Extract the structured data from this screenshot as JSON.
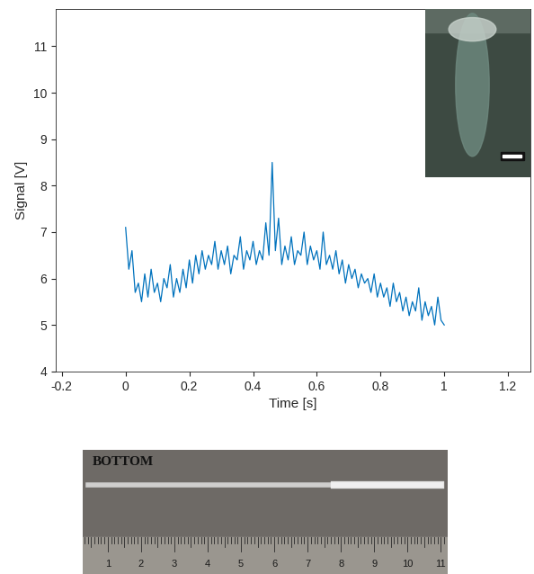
{
  "chart_data": {
    "type": "line",
    "xlabel": "Time [s]",
    "ylabel": "Signal [V]",
    "x": [
      0,
      0.01,
      0.02,
      0.03,
      0.04,
      0.05,
      0.06,
      0.07,
      0.08,
      0.09,
      0.1,
      0.11,
      0.12,
      0.13,
      0.14,
      0.15,
      0.16,
      0.17,
      0.18,
      0.19,
      0.2,
      0.21,
      0.22,
      0.23,
      0.24,
      0.25,
      0.26,
      0.27,
      0.28,
      0.29,
      0.3,
      0.31,
      0.32,
      0.33,
      0.34,
      0.35,
      0.36,
      0.37,
      0.38,
      0.39,
      0.4,
      0.41,
      0.42,
      0.43,
      0.44,
      0.45,
      0.46,
      0.47,
      0.48,
      0.49,
      0.5,
      0.51,
      0.52,
      0.53,
      0.54,
      0.55,
      0.56,
      0.57,
      0.58,
      0.59,
      0.6,
      0.61,
      0.62,
      0.63,
      0.64,
      0.65,
      0.66,
      0.67,
      0.68,
      0.69,
      0.7,
      0.71,
      0.72,
      0.73,
      0.74,
      0.75,
      0.76,
      0.77,
      0.78,
      0.79,
      0.8,
      0.81,
      0.82,
      0.83,
      0.84,
      0.85,
      0.86,
      0.87,
      0.88,
      0.89,
      0.9,
      0.91,
      0.92,
      0.93,
      0.94,
      0.95,
      0.96,
      0.97,
      0.98,
      0.99,
      1
    ],
    "values": [
      7.1,
      6.2,
      6.6,
      5.7,
      5.9,
      5.5,
      6.1,
      5.6,
      6.2,
      5.7,
      5.9,
      5.5,
      6.0,
      5.8,
      6.3,
      5.6,
      6.0,
      5.7,
      6.2,
      5.8,
      6.4,
      5.9,
      6.5,
      6.1,
      6.6,
      6.2,
      6.5,
      6.3,
      6.8,
      6.2,
      6.6,
      6.3,
      6.7,
      6.1,
      6.5,
      6.4,
      6.9,
      6.2,
      6.6,
      6.4,
      6.8,
      6.3,
      6.6,
      6.4,
      7.2,
      6.5,
      8.5,
      6.6,
      7.3,
      6.3,
      6.7,
      6.4,
      6.9,
      6.3,
      6.6,
      6.5,
      7.0,
      6.3,
      6.7,
      6.4,
      6.6,
      6.2,
      7.0,
      6.3,
      6.5,
      6.2,
      6.6,
      6.1,
      6.4,
      5.9,
      6.3,
      6.0,
      6.2,
      5.8,
      6.1,
      5.9,
      6.0,
      5.7,
      6.1,
      5.6,
      5.9,
      5.6,
      5.8,
      5.4,
      5.9,
      5.5,
      5.7,
      5.3,
      5.6,
      5.2,
      5.5,
      5.3,
      5.8,
      5.1,
      5.5,
      5.2,
      5.4,
      5.0,
      5.6,
      5.1,
      5.0
    ],
    "color": "#0072bd",
    "xlim": [
      -0.22,
      1.27
    ],
    "xticks": [
      -0.2,
      0,
      0.2,
      0.4,
      0.6,
      0.8,
      1,
      1.2
    ],
    "ylim": [
      4,
      11.8
    ],
    "yticks": [
      4,
      5,
      6,
      7,
      8,
      9,
      10,
      11
    ]
  },
  "bottom_photo": {
    "label": "BOTTOM",
    "ruler_labels": [
      1,
      2,
      3,
      4,
      5,
      6,
      7,
      8,
      9,
      10,
      11
    ]
  }
}
